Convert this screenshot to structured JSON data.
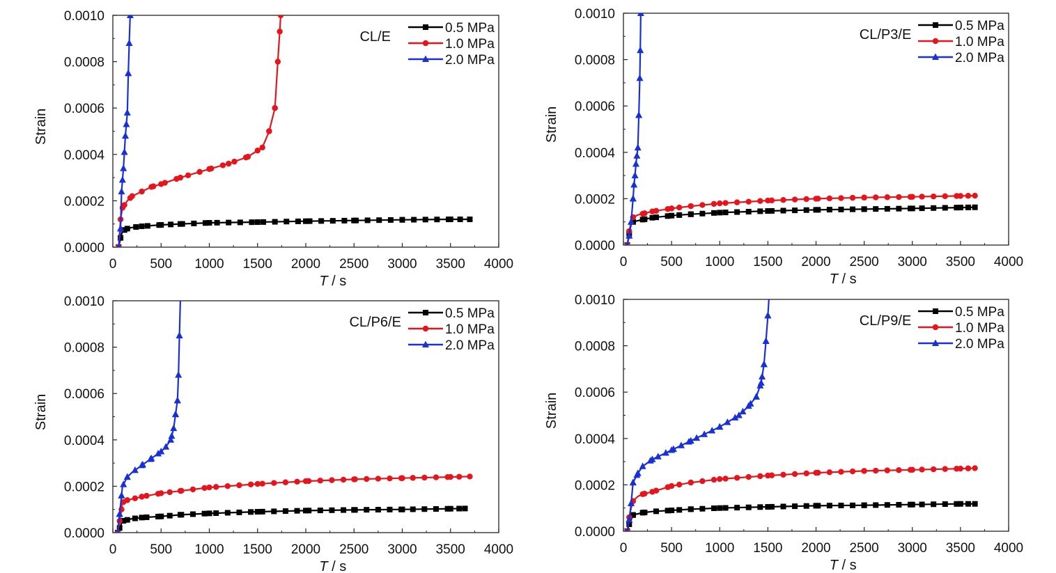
{
  "colors": {
    "0.5 MPa": "#000000",
    "1.0 MPa": "#e8141b",
    "2.0 MPa": "#1730d8"
  },
  "chart_data": [
    {
      "type": "line",
      "panel_label": "CL/E",
      "xlabel_var": "T",
      "xlabel_unit": " / s",
      "ylabel": "Strain",
      "xlim": [
        0,
        4000
      ],
      "ylim": [
        0,
        0.001
      ],
      "xticks": [
        "0",
        "500",
        "1000",
        "1500",
        "2000",
        "2500",
        "3000",
        "3500",
        "4000"
      ],
      "yticks": [
        "0.0000",
        "0.0002",
        "0.0004",
        "0.0006",
        "0.0008",
        "0.0010"
      ],
      "legend_position": "top-right",
      "series": [
        {
          "name": "0.5 MPa",
          "marker": "square",
          "x": [
            60,
            80,
            100,
            150,
            200,
            300,
            400,
            500,
            700,
            1000,
            1500,
            2000,
            2500,
            3000,
            3500,
            3700
          ],
          "y": [
            0,
            4e-05,
            7e-05,
            8e-05,
            8.5e-05,
            9e-05,
            9.3e-05,
            9.6e-05,
            0.0001,
            0.000105,
            0.000108,
            0.000112,
            0.000115,
            0.000118,
            0.00012,
            0.00012
          ]
        },
        {
          "name": "1.0 MPa",
          "marker": "circle",
          "x": [
            60,
            80,
            100,
            150,
            200,
            300,
            400,
            500,
            700,
            1000,
            1200,
            1400,
            1550,
            1620,
            1680,
            1710,
            1730,
            1740
          ],
          "y": [
            0,
            0.00012,
            0.00017,
            0.0002,
            0.00022,
            0.00024,
            0.00026,
            0.000272,
            0.0003,
            0.000337,
            0.00036,
            0.00039,
            0.00043,
            0.0005,
            0.0006,
            0.0008,
            0.00093,
            0.001
          ]
        },
        {
          "name": "2.0 MPa",
          "marker": "triangle",
          "x": [
            60,
            80,
            90,
            110,
            130,
            150,
            160,
            170,
            180
          ],
          "y": [
            0,
            8e-05,
            0.00024,
            0.00034,
            0.00048,
            0.00058,
            0.00075,
            0.00088,
            0.001
          ]
        }
      ]
    },
    {
      "type": "line",
      "panel_label": "CL/P3/E",
      "xlabel_var": "T",
      "xlabel_unit": " / s",
      "ylabel": "Strain",
      "xlim": [
        0,
        4000
      ],
      "ylim": [
        0,
        0.001
      ],
      "xticks": [
        "0",
        "500",
        "1000",
        "1500",
        "2000",
        "2500",
        "3000",
        "3500",
        "4000"
      ],
      "yticks": [
        "0.0000",
        "0.0002",
        "0.0004",
        "0.0006",
        "0.0008",
        "0.0010"
      ],
      "legend_position": "top-right",
      "series": [
        {
          "name": "0.5 MPa",
          "marker": "square",
          "x": [
            40,
            60,
            80,
            100,
            150,
            200,
            300,
            500,
            700,
            1000,
            1500,
            2000,
            2500,
            3000,
            3500,
            3650
          ],
          "y": [
            0,
            5e-05,
            9e-05,
            0.0001,
            0.000105,
            0.00011,
            0.000118,
            0.000127,
            0.000133,
            0.00014,
            0.000147,
            0.000152,
            0.000155,
            0.000158,
            0.000162,
            0.000163
          ]
        },
        {
          "name": "1.0 MPa",
          "marker": "circle",
          "x": [
            40,
            60,
            80,
            100,
            150,
            200,
            300,
            500,
            700,
            1000,
            1500,
            2000,
            2500,
            3000,
            3500,
            3650
          ],
          "y": [
            0,
            6e-05,
            0.0001,
            0.00012,
            0.00013,
            0.000135,
            0.000145,
            0.000158,
            0.000168,
            0.00018,
            0.000192,
            0.0002,
            0.000205,
            0.000208,
            0.000212,
            0.000213
          ]
        },
        {
          "name": "2.0 MPa",
          "marker": "triangle",
          "x": [
            40,
            60,
            80,
            100,
            110,
            120,
            130,
            150,
            160,
            170,
            175,
            180
          ],
          "y": [
            0,
            4e-05,
            0.0001,
            0.0002,
            0.00026,
            0.0003,
            0.00035,
            0.00042,
            0.00056,
            0.00072,
            0.00084,
            0.001
          ]
        }
      ]
    },
    {
      "type": "line",
      "panel_label": "CL/P6/E",
      "xlabel_var": "T",
      "xlabel_unit": " / s",
      "ylabel": "Strain",
      "xlim": [
        0,
        4000
      ],
      "ylim": [
        0,
        0.001
      ],
      "xticks": [
        "0",
        "500",
        "1000",
        "1500",
        "2000",
        "2500",
        "3000",
        "3500",
        "4000"
      ],
      "yticks": [
        "0.0000",
        "0.0002",
        "0.0004",
        "0.0006",
        "0.0008",
        "0.0010"
      ],
      "legend_position": "top-right",
      "series": [
        {
          "name": "0.5 MPa",
          "marker": "square",
          "x": [
            50,
            70,
            90,
            100,
            150,
            200,
            300,
            500,
            700,
            1000,
            1500,
            2000,
            2500,
            3000,
            3500,
            3650
          ],
          "y": [
            0,
            2e-05,
            4e-05,
            5e-05,
            5.5e-05,
            6e-05,
            6.5e-05,
            7e-05,
            7.7e-05,
            8.3e-05,
            9e-05,
            9.5e-05,
            9.8e-05,
            0.0001,
            0.000103,
            0.000104
          ]
        },
        {
          "name": "1.0 MPa",
          "marker": "circle",
          "x": [
            50,
            70,
            90,
            100,
            150,
            200,
            300,
            500,
            700,
            1000,
            1500,
            2000,
            2500,
            3000,
            3500,
            3700
          ],
          "y": [
            0,
            5e-05,
            0.0001,
            0.00013,
            0.00014,
            0.000145,
            0.000155,
            0.00017,
            0.00018,
            0.000195,
            0.00021,
            0.000222,
            0.00023,
            0.000235,
            0.00024,
            0.000242
          ]
        },
        {
          "name": "2.0 MPa",
          "marker": "triangle",
          "x": [
            50,
            70,
            90,
            100,
            150,
            200,
            300,
            400,
            500,
            550,
            600,
            630,
            650,
            670,
            680,
            690,
            700
          ],
          "y": [
            0,
            8e-05,
            0.00016,
            0.0002,
            0.00024,
            0.00026,
            0.00029,
            0.00032,
            0.00035,
            0.00037,
            0.0004,
            0.00045,
            0.00051,
            0.00057,
            0.00068,
            0.00085,
            0.001
          ]
        }
      ]
    },
    {
      "type": "line",
      "panel_label": "CL/P9/E",
      "xlabel_var": "T",
      "xlabel_unit": " / s",
      "ylabel": "Strain",
      "xlim": [
        0,
        4000
      ],
      "ylim": [
        0,
        0.001
      ],
      "xticks": [
        "0",
        "500",
        "1000",
        "1500",
        "2000",
        "2500",
        "3000",
        "3500",
        "4000"
      ],
      "yticks": [
        "0.0000",
        "0.0002",
        "0.0004",
        "0.0006",
        "0.0008",
        "0.0010"
      ],
      "legend_position": "top-right",
      "series": [
        {
          "name": "0.5 MPa",
          "marker": "square",
          "x": [
            40,
            60,
            80,
            100,
            150,
            200,
            300,
            500,
            700,
            1000,
            1500,
            2000,
            2500,
            3000,
            3500,
            3650
          ],
          "y": [
            0,
            3e-05,
            5e-05,
            7e-05,
            7.5e-05,
            8e-05,
            8.5e-05,
            9e-05,
            9.5e-05,
            0.0001,
            0.000105,
            0.00011,
            0.000112,
            0.000115,
            0.000118,
            0.000118
          ]
        },
        {
          "name": "1.0 MPa",
          "marker": "circle",
          "x": [
            40,
            60,
            80,
            100,
            150,
            200,
            300,
            500,
            700,
            1000,
            1500,
            2000,
            2500,
            3000,
            3500,
            3650
          ],
          "y": [
            0,
            6e-05,
            0.0001,
            0.00013,
            0.00015,
            0.00016,
            0.00017,
            0.000195,
            0.00021,
            0.000225,
            0.00024,
            0.000252,
            0.00026,
            0.000265,
            0.00027,
            0.000272
          ]
        },
        {
          "name": "2.0 MPa",
          "marker": "triangle",
          "x": [
            40,
            60,
            80,
            100,
            150,
            200,
            300,
            500,
            700,
            1000,
            1200,
            1300,
            1380,
            1430,
            1460,
            1480,
            1500,
            1510
          ],
          "y": [
            0,
            5e-05,
            0.00012,
            0.00021,
            0.00025,
            0.00028,
            0.00031,
            0.00035,
            0.00039,
            0.00045,
            0.0005,
            0.00054,
            0.00058,
            0.00064,
            0.00072,
            0.00082,
            0.00093,
            0.001
          ]
        }
      ]
    }
  ]
}
